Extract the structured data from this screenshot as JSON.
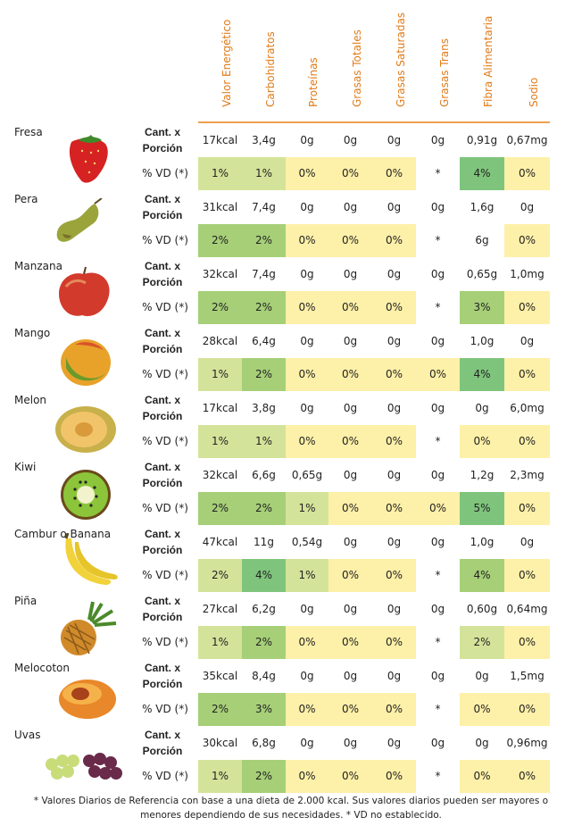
{
  "headers": [
    "Valor Energético",
    "Carbohidratos",
    "Proteínas",
    "Grasas Totales",
    "Grasas Saturadas",
    "Grasas Trans",
    "Fibra Alimentaria",
    "Sodio"
  ],
  "labels": {
    "portion": "Cant. x Porción",
    "vd": "% VD (*)"
  },
  "colors": {
    "header_text": "#e07b1a",
    "rule": "#f0a050",
    "pale_yellow": "#fdf0a8",
    "light_green": "#d4e39a",
    "medium_green": "#a6cf78",
    "strong_green": "#7fc47c"
  },
  "fruits": [
    {
      "name": "Fresa",
      "icon": "strawberry-image",
      "portion": [
        "17kcal",
        "3,4g",
        "0g",
        "0g",
        "0g",
        "0g",
        "0,91g",
        "0,67mg"
      ],
      "vd": [
        "1%",
        "1%",
        "0%",
        "0%",
        "0%",
        "*",
        "4%",
        "0%"
      ],
      "vd_colors": [
        "light",
        "light",
        "pale",
        "pale",
        "pale",
        "none",
        "strong",
        "pale"
      ]
    },
    {
      "name": "Pera",
      "icon": "pear-image",
      "portion": [
        "31kcal",
        "7,4g",
        "0g",
        "0g",
        "0g",
        "0g",
        "1,6g",
        "0g"
      ],
      "vd": [
        "2%",
        "2%",
        "0%",
        "0%",
        "0%",
        "*",
        "6g",
        "0%"
      ],
      "vd_colors": [
        "medium",
        "medium",
        "pale",
        "pale",
        "pale",
        "none",
        "none",
        "pale"
      ]
    },
    {
      "name": "Manzana",
      "icon": "apple-image",
      "portion": [
        "32kcal",
        "7,4g",
        "0g",
        "0g",
        "0g",
        "0g",
        "0,65g",
        "1,0mg"
      ],
      "vd": [
        "2%",
        "2%",
        "0%",
        "0%",
        "0%",
        "*",
        "3%",
        "0%"
      ],
      "vd_colors": [
        "medium",
        "medium",
        "pale",
        "pale",
        "pale",
        "none",
        "medium",
        "pale"
      ]
    },
    {
      "name": "Mango",
      "icon": "mango-image",
      "portion": [
        "28kcal",
        "6,4g",
        "0g",
        "0g",
        "0g",
        "0g",
        "1,0g",
        "0g"
      ],
      "vd": [
        "1%",
        "2%",
        "0%",
        "0%",
        "0%",
        "0%",
        "4%",
        "0%"
      ],
      "vd_colors": [
        "light",
        "medium",
        "pale",
        "pale",
        "pale",
        "pale",
        "strong",
        "pale"
      ]
    },
    {
      "name": "Melon",
      "icon": "melon-image",
      "portion": [
        "17kcal",
        "3,8g",
        "0g",
        "0g",
        "0g",
        "0g",
        "0g",
        "6,0mg"
      ],
      "vd": [
        "1%",
        "1%",
        "0%",
        "0%",
        "0%",
        "*",
        "0%",
        "0%"
      ],
      "vd_colors": [
        "light",
        "light",
        "pale",
        "pale",
        "pale",
        "none",
        "pale",
        "pale"
      ]
    },
    {
      "name": "Kiwi",
      "icon": "kiwi-image",
      "portion": [
        "32kcal",
        "6,6g",
        "0,65g",
        "0g",
        "0g",
        "0g",
        "1,2g",
        "2,3mg"
      ],
      "vd": [
        "2%",
        "2%",
        "1%",
        "0%",
        "0%",
        "0%",
        "5%",
        "0%"
      ],
      "vd_colors": [
        "medium",
        "medium",
        "light",
        "pale",
        "pale",
        "pale",
        "strong",
        "pale"
      ]
    },
    {
      "name": "Cambur o Banana",
      "icon": "banana-image",
      "portion": [
        "47kcal",
        "11g",
        "0,54g",
        "0g",
        "0g",
        "0g",
        "1,0g",
        "0g"
      ],
      "vd": [
        "2%",
        "4%",
        "1%",
        "0%",
        "0%",
        "*",
        "4%",
        "0%"
      ],
      "vd_colors": [
        "light",
        "strong",
        "light",
        "pale",
        "pale",
        "none",
        "medium",
        "pale"
      ]
    },
    {
      "name": "Piña",
      "icon": "pineapple-image",
      "portion": [
        "27kcal",
        "6,2g",
        "0g",
        "0g",
        "0g",
        "0g",
        "0,60g",
        "0,64mg"
      ],
      "vd": [
        "1%",
        "2%",
        "0%",
        "0%",
        "0%",
        "*",
        "2%",
        "0%"
      ],
      "vd_colors": [
        "light",
        "medium",
        "pale",
        "pale",
        "pale",
        "none",
        "light",
        "pale"
      ]
    },
    {
      "name": "Melocoton",
      "icon": "peach-image",
      "portion": [
        "35kcal",
        "8,4g",
        "0g",
        "0g",
        "0g",
        "0g",
        "0g",
        "1,5mg"
      ],
      "vd": [
        "2%",
        "3%",
        "0%",
        "0%",
        "0%",
        "*",
        "0%",
        "0%"
      ],
      "vd_colors": [
        "medium",
        "medium",
        "pale",
        "pale",
        "pale",
        "none",
        "pale",
        "pale"
      ]
    },
    {
      "name": "Uvas",
      "icon": "grapes-image",
      "portion": [
        "30kcal",
        "6,8g",
        "0g",
        "0g",
        "0g",
        "0g",
        "0g",
        "0,96mg"
      ],
      "vd": [
        "1%",
        "2%",
        "0%",
        "0%",
        "0%",
        "*",
        "0%",
        "0%"
      ],
      "vd_colors": [
        "light",
        "medium",
        "pale",
        "pale",
        "pale",
        "none",
        "pale",
        "pale"
      ]
    }
  ],
  "footnote_line1": "* Valores Diarios de Referencia con base a una dieta de 2.000 kcal. Sus valores diarios pueden ser mayores o",
  "footnote_line2": "menores dependiendo de sus necesidades. * VD no establecido."
}
